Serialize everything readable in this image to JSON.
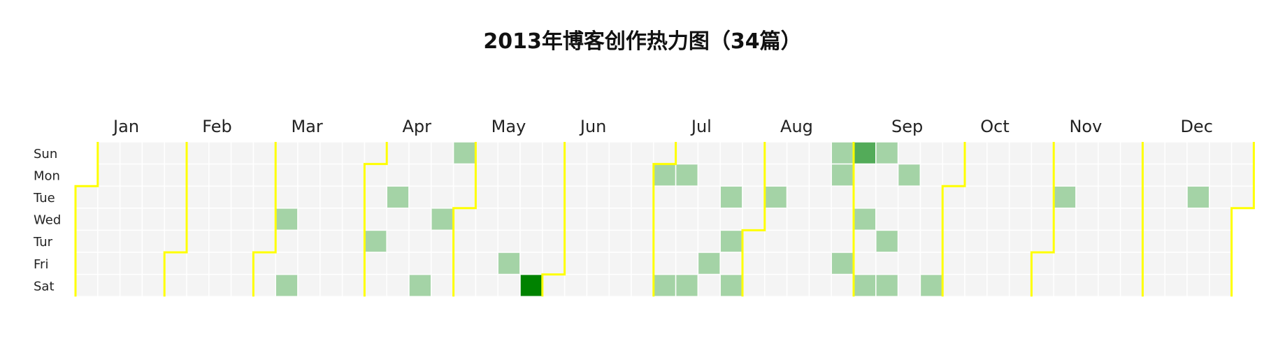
{
  "title": "2013年博客创作热力图（34篇）",
  "chart_data": {
    "type": "heatmap",
    "title": "2013年博客创作热力图（34篇）",
    "year": 2013,
    "total_posts": 34,
    "months": [
      "Jan",
      "Feb",
      "Mar",
      "Apr",
      "May",
      "Jun",
      "Jul",
      "Aug",
      "Sep",
      "Oct",
      "Nov",
      "Dec"
    ],
    "weekdays": [
      "Sun",
      "Mon",
      "Tue",
      "Wed",
      "Tur",
      "Fri",
      "Sat"
    ],
    "grid": false,
    "empty_color": "#f4f4f4",
    "boundary_color": "#ffff00",
    "color_scale": {
      "1": "#a4d3a6",
      "2": "#53ab59",
      "3": "#008200"
    },
    "values": [
      {
        "date": "2013-03-06",
        "count": 1
      },
      {
        "date": "2013-03-09",
        "count": 1
      },
      {
        "date": "2013-04-04",
        "count": 1
      },
      {
        "date": "2013-04-09",
        "count": 1
      },
      {
        "date": "2013-04-20",
        "count": 1
      },
      {
        "date": "2013-04-24",
        "count": 1
      },
      {
        "date": "2013-04-28",
        "count": 1
      },
      {
        "date": "2013-05-17",
        "count": 1
      },
      {
        "date": "2013-05-25",
        "count": 3
      },
      {
        "date": "2013-07-01",
        "count": 1
      },
      {
        "date": "2013-07-06",
        "count": 1
      },
      {
        "date": "2013-07-08",
        "count": 1
      },
      {
        "date": "2013-07-13",
        "count": 1
      },
      {
        "date": "2013-07-19",
        "count": 1
      },
      {
        "date": "2013-07-23",
        "count": 1
      },
      {
        "date": "2013-07-25",
        "count": 1
      },
      {
        "date": "2013-07-27",
        "count": 1
      },
      {
        "date": "2013-08-06",
        "count": 1
      },
      {
        "date": "2013-08-25",
        "count": 1
      },
      {
        "date": "2013-08-26",
        "count": 1
      },
      {
        "date": "2013-08-30",
        "count": 1
      },
      {
        "date": "2013-09-01",
        "count": 2
      },
      {
        "date": "2013-09-04",
        "count": 1
      },
      {
        "date": "2013-09-07",
        "count": 1
      },
      {
        "date": "2013-09-08",
        "count": 1
      },
      {
        "date": "2013-09-12",
        "count": 1
      },
      {
        "date": "2013-09-14",
        "count": 1
      },
      {
        "date": "2013-09-16",
        "count": 1
      },
      {
        "date": "2013-09-28",
        "count": 1
      },
      {
        "date": "2013-11-05",
        "count": 1
      },
      {
        "date": "2013-12-17",
        "count": 1
      }
    ]
  }
}
